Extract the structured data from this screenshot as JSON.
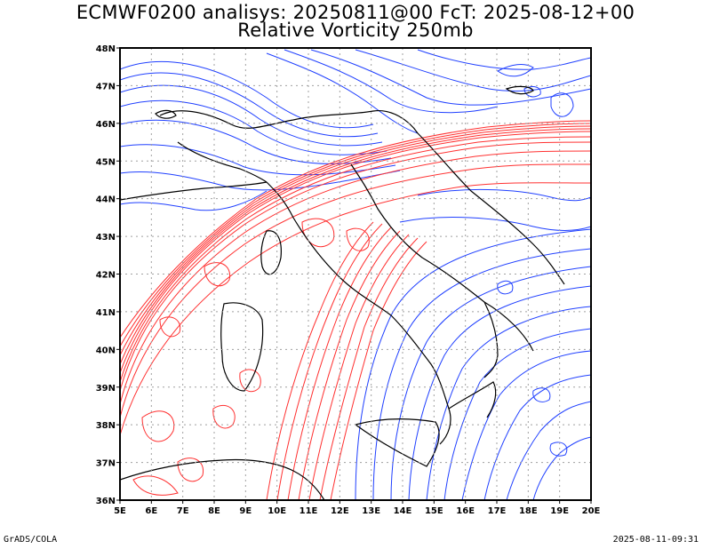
{
  "title_line1": "ECMWF0200 analisys: 20250811@00 FcT: 2025-08-12+00",
  "title_line2": "Relative Vorticity 250mb",
  "footer_left": "GrADS/COLA",
  "footer_right": "2025-08-11-09:31",
  "lon_labels": [
    "5E",
    "6E",
    "7E",
    "8E",
    "9E",
    "10E",
    "11E",
    "12E",
    "13E",
    "14E",
    "15E",
    "16E",
    "17E",
    "18E",
    "19E",
    "20E"
  ],
  "lat_labels": [
    "48N",
    "47N",
    "46N",
    "45N",
    "44N",
    "43N",
    "42N",
    "41N",
    "40N",
    "39N",
    "38N",
    "37N",
    "36N"
  ],
  "colors": {
    "positive_contour": "#ff3030",
    "negative_contour": "#2040ff",
    "border": "#000000",
    "grid": "#a0a0a0"
  },
  "map": {
    "projection": "latlon",
    "lon_range": [
      5,
      20
    ],
    "lat_range": [
      36,
      48
    ],
    "variable": "Relative Vorticity 250mb",
    "grid": true
  }
}
